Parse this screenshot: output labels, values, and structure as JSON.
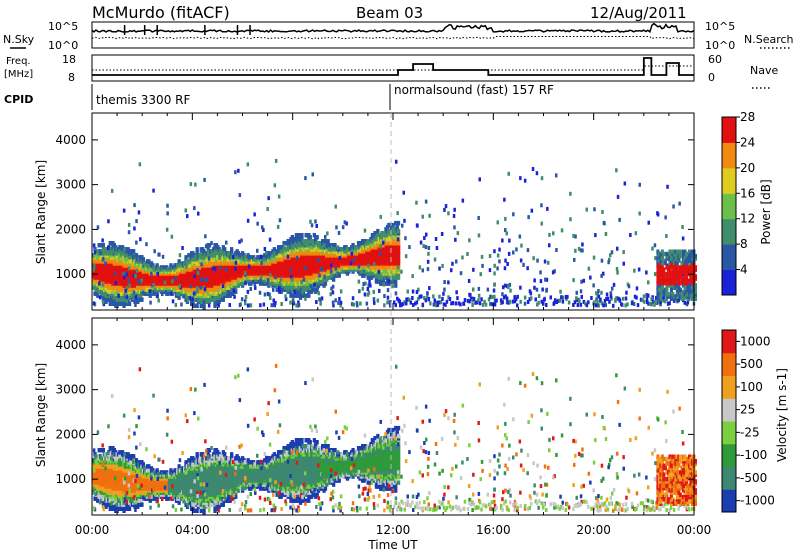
{
  "header": {
    "station": "McMurdo (fitACF)",
    "beam": "Beam 03",
    "date": "12/Aug/2011"
  },
  "noise_panel": {
    "left_label": "N.Sky",
    "right_label": "N.Search",
    "left_ticks": [
      "10^5",
      "10^0"
    ],
    "right_ticks": [
      "10^5",
      "10^0"
    ]
  },
  "freq_panel": {
    "left_label_1": "Freq.",
    "left_label_2": "[MHz]",
    "left_ticks": [
      "18",
      "8"
    ],
    "right_label": "Nave",
    "right_ticks": [
      "60",
      "0"
    ]
  },
  "cpid_panel": {
    "label": "CPID",
    "modes": [
      {
        "name": "themis 3300 RF",
        "start": 0
      },
      {
        "name": "normalsound (fast) 157 RF",
        "start": 12
      }
    ]
  },
  "chart_data": [
    {
      "type": "heatmap",
      "name": "power",
      "ylabel": "Slant Range [km]",
      "yticks": [
        "1000",
        "2000",
        "3000",
        "4000"
      ],
      "ylim": [
        200,
        4600
      ],
      "xlim": [
        0,
        24
      ],
      "colorbar": {
        "label": "Power [dB]",
        "ticks": [
          "4",
          "8",
          "12",
          "16",
          "20",
          "24",
          "28"
        ],
        "colors": [
          "#1a22d8",
          "#2a56a6",
          "#3f8d6a",
          "#6cc04a",
          "#e0cc20",
          "#f08a10",
          "#e21010"
        ]
      }
    },
    {
      "type": "heatmap",
      "name": "velocity",
      "ylabel": "Slant Range [km]",
      "yticks": [
        "1000",
        "2000",
        "3000",
        "4000"
      ],
      "ylim": [
        200,
        4600
      ],
      "xlim": [
        0,
        24
      ],
      "xticks": [
        "00:00",
        "04:00",
        "08:00",
        "12:00",
        "16:00",
        "20:00",
        "00:00"
      ],
      "xlabel": "Time UT",
      "colorbar": {
        "label": "Velocity [m s-1]",
        "ticks": [
          "1000",
          "500",
          "100",
          "25",
          "-25",
          "-100",
          "-500",
          "-1000"
        ],
        "colors": [
          "#1c3db0",
          "#3c8870",
          "#2e9a3a",
          "#7cd040",
          "#c8c8c8",
          "#f0a020",
          "#f07010",
          "#e01818"
        ]
      }
    }
  ]
}
